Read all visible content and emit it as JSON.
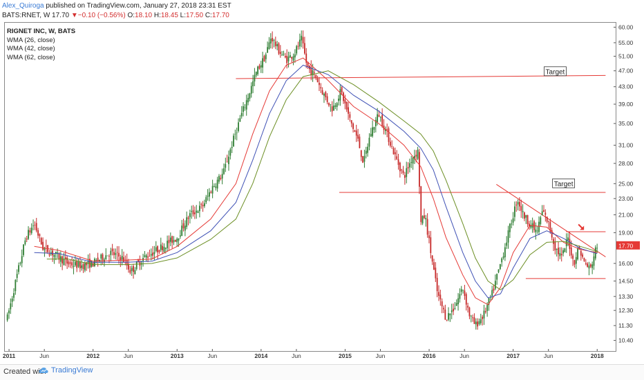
{
  "header": {
    "author": "Alex_Quiroga",
    "published": "published on TradingView.com, January 27, 2018 23:31 EST",
    "symbol_line": "BATS:RNET, W",
    "last": "17.70",
    "change_arrow": "▼",
    "change": "−0.10 (−0.56%)",
    "o_label": "O:",
    "o": "18.10",
    "h_label": "H:",
    "h": "18.45",
    "l_label": "L:",
    "l": "17.50",
    "c_label": "C:",
    "c": "17.70"
  },
  "legend": {
    "title": "RIGNET INC, W, BATS",
    "items": [
      "WMA (26, close)",
      "WMA (42, close)",
      "WMA (62, close)"
    ]
  },
  "footer": {
    "created_with": "Created with",
    "brand": "TradingView"
  },
  "colors": {
    "up": "#2e7d32",
    "down": "#c62828",
    "wma26": "#e53935",
    "wma42": "#3f51b5",
    "wma62": "#6b8e23",
    "level_line": "#e53935",
    "price_badge": "#e53935"
  },
  "chart_data": {
    "type": "candlestick",
    "symbol": "BATS:RNET",
    "interval": "W",
    "y_scale": "log",
    "ylim": [
      9.8,
      61.5
    ],
    "y_ticks": [
      "60.00",
      "55.00",
      "51.00",
      "47.00",
      "43.00",
      "39.00",
      "35.00",
      "31.00",
      "28.00",
      "25.00",
      "23.00",
      "21.00",
      "19.00",
      "17.70",
      "16.00",
      "14.50",
      "13.30",
      "12.30",
      "11.30",
      "10.40"
    ],
    "x_range": [
      "2011-01",
      "2018-02"
    ],
    "x_ticks": [
      {
        "label": "2011",
        "t": 2011.0,
        "bold": true
      },
      {
        "label": "Jun",
        "t": 2011.42,
        "bold": false
      },
      {
        "label": "2012",
        "t": 2012.0,
        "bold": true
      },
      {
        "label": "Jun",
        "t": 2012.42,
        "bold": false
      },
      {
        "label": "2013",
        "t": 2013.0,
        "bold": true
      },
      {
        "label": "Jun",
        "t": 2013.42,
        "bold": false
      },
      {
        "label": "2014",
        "t": 2014.0,
        "bold": true
      },
      {
        "label": "Jun",
        "t": 2014.42,
        "bold": false
      },
      {
        "label": "2015",
        "t": 2015.0,
        "bold": true
      },
      {
        "label": "Jun",
        "t": 2015.42,
        "bold": false
      },
      {
        "label": "2016",
        "t": 2016.0,
        "bold": true
      },
      {
        "label": "Jun",
        "t": 2016.42,
        "bold": false
      },
      {
        "label": "2017",
        "t": 2017.0,
        "bold": true
      },
      {
        "label": "Jun",
        "t": 2017.42,
        "bold": false
      },
      {
        "label": "2018",
        "t": 2018.0,
        "bold": true
      }
    ],
    "price_path": [
      [
        2010.98,
        11.8
      ],
      [
        2011.08,
        14.5
      ],
      [
        2011.2,
        18.5
      ],
      [
        2011.3,
        20.0
      ],
      [
        2011.4,
        17.5
      ],
      [
        2011.55,
        16.8
      ],
      [
        2011.7,
        16.0
      ],
      [
        2011.85,
        15.8
      ],
      [
        2012.0,
        16.0
      ],
      [
        2012.2,
        17.0
      ],
      [
        2012.35,
        16.5
      ],
      [
        2012.45,
        15.3
      ],
      [
        2012.6,
        16.5
      ],
      [
        2012.75,
        17.2
      ],
      [
        2012.9,
        18.0
      ],
      [
        2013.0,
        18.5
      ],
      [
        2013.15,
        21.0
      ],
      [
        2013.3,
        22.0
      ],
      [
        2013.42,
        24.5
      ],
      [
        2013.55,
        26.5
      ],
      [
        2013.65,
        31.0
      ],
      [
        2013.75,
        36.0
      ],
      [
        2013.85,
        41.0
      ],
      [
        2013.95,
        47.0
      ],
      [
        2014.05,
        51.0
      ],
      [
        2014.12,
        57.0
      ],
      [
        2014.2,
        53.0
      ],
      [
        2014.3,
        50.0
      ],
      [
        2014.4,
        52.0
      ],
      [
        2014.48,
        56.0
      ],
      [
        2014.55,
        48.0
      ],
      [
        2014.65,
        45.5
      ],
      [
        2014.75,
        41.0
      ],
      [
        2014.85,
        38.0
      ],
      [
        2014.95,
        42.0
      ],
      [
        2015.05,
        36.0
      ],
      [
        2015.15,
        32.0
      ],
      [
        2015.22,
        28.0
      ],
      [
        2015.3,
        33.0
      ],
      [
        2015.4,
        37.0
      ],
      [
        2015.5,
        33.0
      ],
      [
        2015.6,
        29.0
      ],
      [
        2015.7,
        26.0
      ],
      [
        2015.8,
        29.0
      ],
      [
        2015.87,
        30.0
      ],
      [
        2015.9,
        20.0
      ],
      [
        2015.95,
        21.0
      ],
      [
        2016.02,
        17.0
      ],
      [
        2016.1,
        13.5
      ],
      [
        2016.2,
        11.8
      ],
      [
        2016.3,
        12.5
      ],
      [
        2016.4,
        14.0
      ],
      [
        2016.48,
        12.0
      ],
      [
        2016.55,
        11.3
      ],
      [
        2016.65,
        12.0
      ],
      [
        2016.75,
        13.5
      ],
      [
        2016.85,
        16.0
      ],
      [
        2016.93,
        18.5
      ],
      [
        2017.0,
        21.0
      ],
      [
        2017.05,
        23.0
      ],
      [
        2017.12,
        21.0
      ],
      [
        2017.2,
        20.0
      ],
      [
        2017.28,
        19.0
      ],
      [
        2017.35,
        21.5
      ],
      [
        2017.42,
        20.0
      ],
      [
        2017.5,
        17.5
      ],
      [
        2017.58,
        16.5
      ],
      [
        2017.65,
        18.5
      ],
      [
        2017.72,
        16.0
      ],
      [
        2017.78,
        17.5
      ],
      [
        2017.85,
        16.0
      ],
      [
        2017.92,
        15.5
      ],
      [
        2017.97,
        17.0
      ],
      [
        2018.0,
        17.7
      ]
    ],
    "wma_26_path": [
      [
        2011.3,
        17.6
      ],
      [
        2011.6,
        17.2
      ],
      [
        2012.0,
        16.2
      ],
      [
        2012.4,
        16.3
      ],
      [
        2012.7,
        16.4
      ],
      [
        2013.0,
        17.6
      ],
      [
        2013.4,
        20.5
      ],
      [
        2013.7,
        25.0
      ],
      [
        2013.9,
        33.0
      ],
      [
        2014.1,
        42.0
      ],
      [
        2014.3,
        48.5
      ],
      [
        2014.5,
        50.5
      ],
      [
        2014.8,
        44.5
      ],
      [
        2015.1,
        38.5
      ],
      [
        2015.4,
        35.0
      ],
      [
        2015.7,
        31.0
      ],
      [
        2015.9,
        27.5
      ],
      [
        2016.05,
        23.0
      ],
      [
        2016.2,
        18.5
      ],
      [
        2016.4,
        15.0
      ],
      [
        2016.55,
        13.2
      ],
      [
        2016.7,
        12.7
      ],
      [
        2016.85,
        14.0
      ],
      [
        2017.0,
        17.0
      ],
      [
        2017.2,
        19.8
      ],
      [
        2017.4,
        19.6
      ],
      [
        2017.6,
        18.0
      ],
      [
        2017.8,
        17.3
      ],
      [
        2018.0,
        17.0
      ]
    ],
    "wma_42_path": [
      [
        2011.3,
        17.0
      ],
      [
        2011.6,
        16.9
      ],
      [
        2012.0,
        16.1
      ],
      [
        2012.4,
        16.1
      ],
      [
        2012.7,
        16.2
      ],
      [
        2013.0,
        17.0
      ],
      [
        2013.4,
        19.2
      ],
      [
        2013.7,
        22.5
      ],
      [
        2013.9,
        28.5
      ],
      [
        2014.1,
        37.0
      ],
      [
        2014.3,
        44.5
      ],
      [
        2014.5,
        48.5
      ],
      [
        2014.8,
        46.0
      ],
      [
        2015.1,
        41.0
      ],
      [
        2015.4,
        37.5
      ],
      [
        2015.7,
        33.5
      ],
      [
        2015.9,
        30.5
      ],
      [
        2016.05,
        27.0
      ],
      [
        2016.2,
        22.0
      ],
      [
        2016.4,
        17.0
      ],
      [
        2016.55,
        14.5
      ],
      [
        2016.7,
        13.2
      ],
      [
        2016.85,
        13.5
      ],
      [
        2017.0,
        15.6
      ],
      [
        2017.2,
        18.4
      ],
      [
        2017.4,
        19.2
      ],
      [
        2017.6,
        18.4
      ],
      [
        2017.8,
        17.4
      ],
      [
        2018.0,
        16.9
      ]
    ],
    "wma_62_path": [
      [
        2011.45,
        16.4
      ],
      [
        2011.7,
        16.4
      ],
      [
        2012.0,
        15.9
      ],
      [
        2012.4,
        15.9
      ],
      [
        2012.7,
        16.0
      ],
      [
        2013.0,
        16.5
      ],
      [
        2013.4,
        18.3
      ],
      [
        2013.7,
        20.5
      ],
      [
        2013.9,
        25.0
      ],
      [
        2014.1,
        32.5
      ],
      [
        2014.3,
        40.0
      ],
      [
        2014.5,
        45.5
      ],
      [
        2014.8,
        47.0
      ],
      [
        2015.1,
        43.5
      ],
      [
        2015.4,
        39.5
      ],
      [
        2015.7,
        35.5
      ],
      [
        2015.9,
        33.0
      ],
      [
        2016.05,
        30.0
      ],
      [
        2016.2,
        25.5
      ],
      [
        2016.4,
        20.0
      ],
      [
        2016.55,
        16.5
      ],
      [
        2016.7,
        14.5
      ],
      [
        2016.85,
        13.8
      ],
      [
        2017.0,
        14.6
      ],
      [
        2017.2,
        16.8
      ],
      [
        2017.4,
        18.0
      ],
      [
        2017.6,
        18.1
      ],
      [
        2017.8,
        17.6
      ],
      [
        2018.0,
        17.1
      ]
    ],
    "drawings": {
      "levels": [
        {
          "name": "upper-target-line",
          "from": [
            2013.7,
            45.0
          ],
          "to": [
            2018.1,
            45.8
          ]
        },
        {
          "name": "lower-target-line",
          "from": [
            2014.93,
            23.8
          ],
          "to": [
            2018.1,
            23.8
          ]
        },
        {
          "name": "resistance-line",
          "from": [
            2017.63,
            19.1
          ],
          "to": [
            2018.1,
            19.1
          ]
        },
        {
          "name": "support-line",
          "from": [
            2017.15,
            14.7
          ],
          "to": [
            2018.1,
            14.7
          ]
        },
        {
          "name": "trendline",
          "from": [
            2016.8,
            24.9
          ],
          "to": [
            2018.1,
            16.6
          ]
        }
      ],
      "labels": [
        {
          "name": "upper-target-label",
          "text": "Target",
          "at": [
            2017.5,
            46.8
          ]
        },
        {
          "name": "lower-target-label",
          "text": "Target",
          "at": [
            2017.6,
            25.0
          ]
        }
      ],
      "arrow": {
        "at": [
          2017.81,
          19.6
        ]
      }
    },
    "last_price": 17.7,
    "last_price_label": "17.70"
  }
}
